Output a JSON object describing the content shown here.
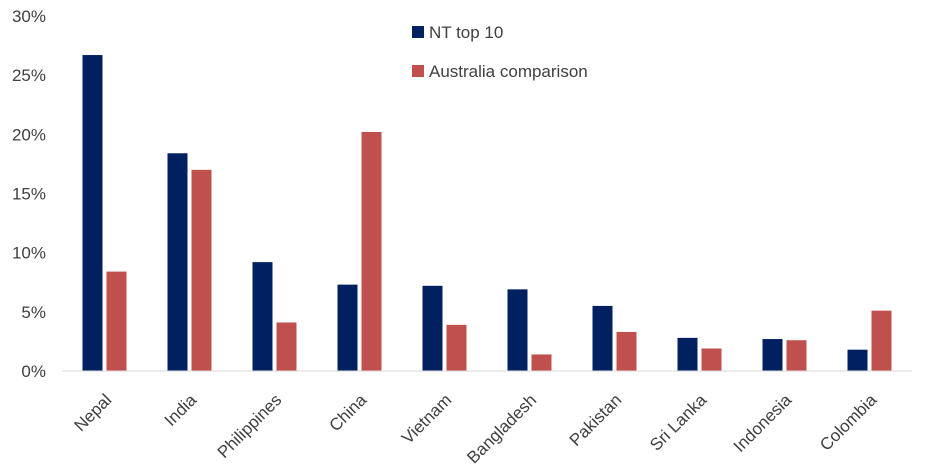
{
  "chart_data": {
    "type": "bar",
    "categories": [
      "Nepal",
      "India",
      "Philippines",
      "China",
      "Vietnam",
      "Bangladesh",
      "Pakistan",
      "Sri Lanka",
      "Indonesia",
      "Colombia"
    ],
    "series": [
      {
        "name": "NT top 10",
        "color": "#002060",
        "values": [
          26.7,
          18.4,
          9.2,
          7.3,
          7.2,
          6.9,
          5.5,
          2.8,
          2.7,
          1.8
        ]
      },
      {
        "name": "Australia comparison",
        "color": "#C0504D",
        "values": [
          8.4,
          17.0,
          4.1,
          20.2,
          3.9,
          1.4,
          3.3,
          1.9,
          2.6,
          5.1
        ]
      }
    ],
    "yticks": [
      "0%",
      "5%",
      "10%",
      "15%",
      "20%",
      "25%",
      "30%"
    ],
    "ylim": [
      0,
      30
    ],
    "title": "",
    "xlabel": "",
    "ylabel": "",
    "grid": false,
    "legend_position": "top-center",
    "axis_color": "#D9D9D9"
  }
}
